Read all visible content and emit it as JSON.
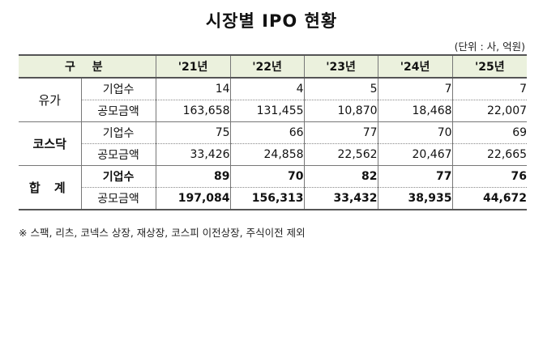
{
  "title": "시장별 IPO 현황",
  "unit_note": "(단위 : 사, 억원)",
  "table": {
    "header": [
      "구 분",
      "'21년",
      "'22년",
      "'23년",
      "'24년",
      "'25년"
    ],
    "groups": [
      {
        "name": "유가",
        "rows": [
          {
            "label": "기업수",
            "values": [
              "14",
              "4",
              "5",
              "7",
              "7"
            ]
          },
          {
            "label": "공모금액",
            "values": [
              "163,658",
              "131,455",
              "10,870",
              "18,468",
              "22,007"
            ]
          }
        ]
      },
      {
        "name": "코스닥",
        "rows": [
          {
            "label": "기업수",
            "values": [
              "75",
              "66",
              "77",
              "70",
              "69"
            ]
          },
          {
            "label": "공모금액",
            "values": [
              "33,426",
              "24,858",
              "22,562",
              "20,467",
              "22,665"
            ]
          }
        ]
      },
      {
        "name": "합 계",
        "rows": [
          {
            "label": "기업수",
            "values": [
              "89",
              "70",
              "82",
              "77",
              "76"
            ]
          },
          {
            "label": "공모금액",
            "values": [
              "197,084",
              "156,313",
              "33,432",
              "38,935",
              "44,672"
            ]
          }
        ]
      }
    ]
  },
  "footnote": "※ 스팩, 리츠, 코넥스 상장, 재상장, 코스피 이전상장, 주식이전 제외"
}
